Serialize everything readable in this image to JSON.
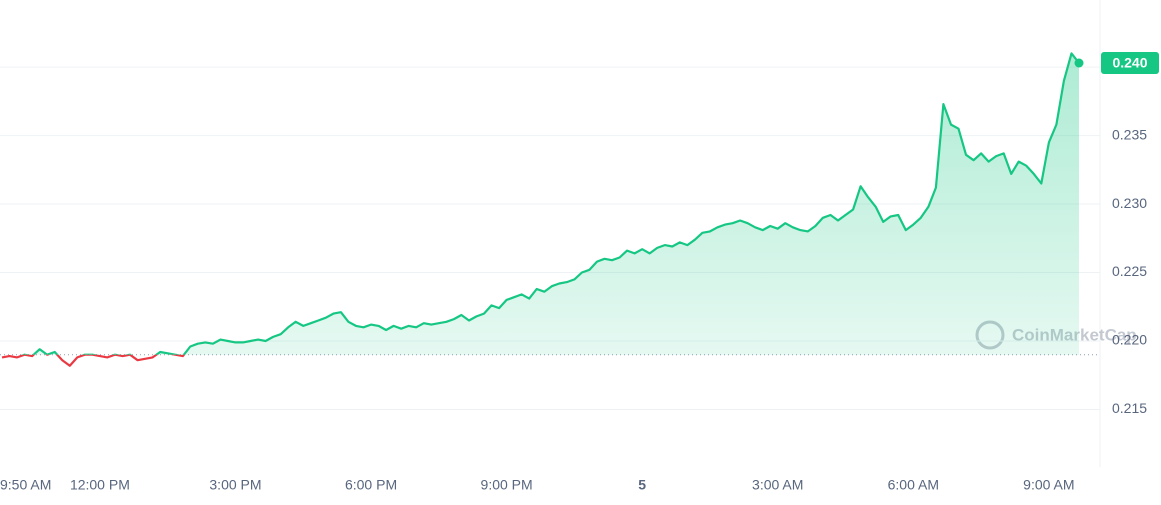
{
  "chart_data": {
    "type": "line",
    "watermark": "CoinMarketCap",
    "categories": [
      "9:50 AM",
      null,
      null,
      null,
      null,
      null,
      null,
      null,
      null,
      null,
      null,
      null,
      null,
      "12:00 PM",
      null,
      null,
      null,
      null,
      null,
      null,
      null,
      null,
      null,
      null,
      null,
      null,
      null,
      null,
      null,
      null,
      null,
      "3:00 PM",
      null,
      null,
      null,
      null,
      null,
      null,
      null,
      null,
      null,
      null,
      null,
      null,
      null,
      null,
      null,
      null,
      null,
      "6:00 PM",
      null,
      null,
      null,
      null,
      null,
      null,
      null,
      null,
      null,
      null,
      null,
      null,
      null,
      null,
      null,
      null,
      null,
      "9:00 PM",
      null,
      null,
      null,
      null,
      null,
      null,
      null,
      null,
      null,
      null,
      null,
      null,
      null,
      null,
      null,
      null,
      null,
      "5",
      null,
      null,
      null,
      null,
      null,
      null,
      null,
      null,
      null,
      null,
      null,
      null,
      null,
      null,
      null,
      null,
      null,
      "3:00 AM",
      null,
      null,
      null,
      null,
      null,
      null,
      null,
      null,
      null,
      null,
      null,
      null,
      null,
      null,
      null,
      null,
      null,
      "6:00 AM",
      null,
      null,
      null,
      null,
      null,
      null,
      null,
      null,
      null,
      null,
      null,
      null,
      null,
      null,
      null,
      null,
      null,
      "9:00 AM",
      null,
      null,
      null,
      null
    ],
    "values": [
      0.2188,
      0.2189,
      0.2188,
      0.219,
      0.2189,
      0.2194,
      0.219,
      0.2192,
      0.2186,
      0.2182,
      0.2188,
      0.219,
      0.219,
      0.2189,
      0.2188,
      0.219,
      0.2189,
      0.219,
      0.2186,
      0.2187,
      0.2188,
      0.2192,
      0.2191,
      0.219,
      0.2189,
      0.2196,
      0.2198,
      0.2199,
      0.2198,
      0.2201,
      0.22,
      0.2199,
      0.2199,
      0.22,
      0.2201,
      0.22,
      0.2203,
      0.2205,
      0.221,
      0.2214,
      0.2211,
      0.2213,
      0.2215,
      0.2217,
      0.222,
      0.2221,
      0.2214,
      0.2211,
      0.221,
      0.2212,
      0.2211,
      0.2208,
      0.2211,
      0.2209,
      0.2211,
      0.221,
      0.2213,
      0.2212,
      0.2213,
      0.2214,
      0.2216,
      0.2219,
      0.2215,
      0.2218,
      0.222,
      0.2226,
      0.2224,
      0.223,
      0.2232,
      0.2234,
      0.2231,
      0.2238,
      0.2236,
      0.224,
      0.2242,
      0.2243,
      0.2245,
      0.225,
      0.2252,
      0.2258,
      0.226,
      0.2259,
      0.2261,
      0.2266,
      0.2264,
      0.2267,
      0.2264,
      0.2268,
      0.227,
      0.2269,
      0.2272,
      0.227,
      0.2274,
      0.2279,
      0.228,
      0.2283,
      0.2285,
      0.2286,
      0.2288,
      0.2286,
      0.2283,
      0.2281,
      0.2284,
      0.2282,
      0.2286,
      0.2283,
      0.2281,
      0.228,
      0.2284,
      0.229,
      0.2292,
      0.2288,
      0.2292,
      0.2296,
      0.2313,
      0.2305,
      0.2298,
      0.2287,
      0.2291,
      0.2292,
      0.2281,
      0.2285,
      0.229,
      0.2298,
      0.2312,
      0.2373,
      0.2358,
      0.2355,
      0.2336,
      0.2332,
      0.2337,
      0.2331,
      0.2335,
      0.2337,
      0.2322,
      0.2331,
      0.2328,
      0.2322,
      0.2315,
      0.2345,
      0.2358,
      0.239,
      0.241,
      0.2403
    ],
    "color": "#16c784",
    "down_color": "#ea3943",
    "baseline": 0.219,
    "current_price": {
      "value": 0.2403,
      "label": "0.240"
    },
    "ylim": [
      0.2108,
      0.2449
    ],
    "yticks": [
      {
        "value": 0.24,
        "label": "0.240"
      },
      0.235,
      {
        "value": 0.23,
        "label": "0.230"
      },
      0.225,
      {
        "value": 0.22,
        "label": "0.220"
      },
      0.215
    ],
    "grid": true
  }
}
